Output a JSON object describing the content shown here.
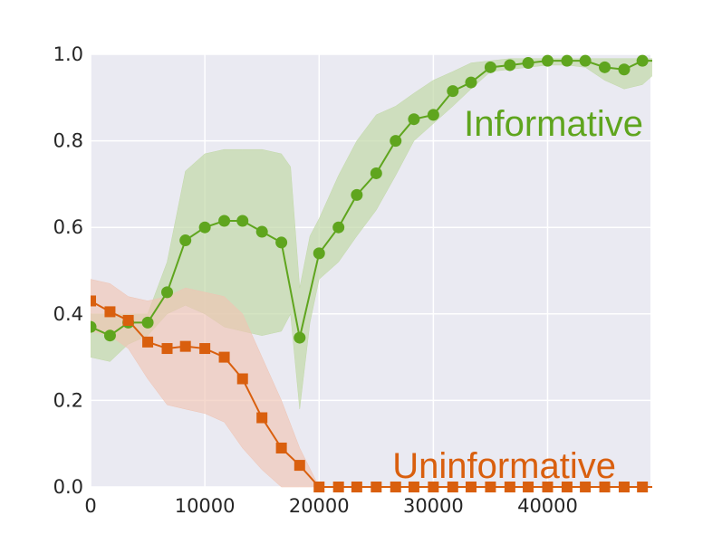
{
  "chart_data": {
    "type": "line",
    "title": "",
    "xlabel": "",
    "ylabel": "",
    "xlim": [
      0,
      49000
    ],
    "ylim": [
      0,
      1.0
    ],
    "grid": true,
    "legend": "inline labels",
    "xticks": [
      {
        "value": 0,
        "label": "0"
      },
      {
        "value": 10000,
        "label": "10000"
      },
      {
        "value": 20000,
        "label": "20000"
      },
      {
        "value": 30000,
        "label": "30000"
      },
      {
        "value": 40000,
        "label": "40000"
      }
    ],
    "yticks": [
      {
        "value": 0.0,
        "label": "0.0"
      },
      {
        "value": 0.2,
        "label": "0.2"
      },
      {
        "value": 0.4,
        "label": "0.4"
      },
      {
        "value": 0.6,
        "label": "0.6"
      },
      {
        "value": 0.8,
        "label": "0.8"
      },
      {
        "value": 1.0,
        "label": "1.0"
      }
    ],
    "colors": {
      "background": "#EAEAF2",
      "grid": "#FFFFFF",
      "informative": "#5FA51E",
      "informative_band": "#C2D9A8",
      "uninformative": "#D95F0E",
      "uninformative_band": "#EFC4B4"
    },
    "series": [
      {
        "name": "Informative",
        "color": "#5FA51E",
        "marker": "circle",
        "label_position": "upper-right",
        "points": [
          [
            0,
            0.37
          ],
          [
            1700,
            0.35
          ],
          [
            3300,
            0.38
          ],
          [
            5000,
            0.38
          ],
          [
            6700,
            0.45
          ],
          [
            8300,
            0.57
          ],
          [
            10000,
            0.6
          ],
          [
            11700,
            0.615
          ],
          [
            13300,
            0.615
          ],
          [
            15000,
            0.59
          ],
          [
            16700,
            0.565
          ],
          [
            18300,
            0.345
          ],
          [
            20000,
            0.54
          ],
          [
            21700,
            0.6
          ],
          [
            23300,
            0.675
          ],
          [
            25000,
            0.725
          ],
          [
            26700,
            0.8
          ],
          [
            28300,
            0.85
          ],
          [
            30000,
            0.86
          ],
          [
            31700,
            0.915
          ],
          [
            33300,
            0.935
          ],
          [
            35000,
            0.97
          ],
          [
            36700,
            0.975
          ],
          [
            38300,
            0.98
          ],
          [
            40000,
            0.985
          ],
          [
            41700,
            0.985
          ],
          [
            43300,
            0.985
          ],
          [
            45000,
            0.97
          ],
          [
            46700,
            0.965
          ],
          [
            48300,
            0.985
          ],
          [
            50000,
            0.985
          ]
        ],
        "band": [
          [
            0,
            0.3,
            0.4
          ],
          [
            1700,
            0.29,
            0.4
          ],
          [
            3300,
            0.33,
            0.4
          ],
          [
            5000,
            0.35,
            0.4
          ],
          [
            6700,
            0.4,
            0.52
          ],
          [
            8300,
            0.42,
            0.73
          ],
          [
            10000,
            0.4,
            0.77
          ],
          [
            11700,
            0.37,
            0.78
          ],
          [
            13300,
            0.36,
            0.78
          ],
          [
            15000,
            0.35,
            0.78
          ],
          [
            16700,
            0.36,
            0.77
          ],
          [
            17500,
            0.4,
            0.74
          ],
          [
            18300,
            0.18,
            0.46
          ],
          [
            19200,
            0.38,
            0.58
          ],
          [
            20000,
            0.48,
            0.62
          ],
          [
            21700,
            0.52,
            0.72
          ],
          [
            23300,
            0.58,
            0.8
          ],
          [
            25000,
            0.64,
            0.86
          ],
          [
            26700,
            0.72,
            0.88
          ],
          [
            28300,
            0.8,
            0.91
          ],
          [
            30000,
            0.84,
            0.94
          ],
          [
            31700,
            0.88,
            0.96
          ],
          [
            33300,
            0.92,
            0.98
          ],
          [
            35000,
            0.96,
            0.985
          ],
          [
            36700,
            0.965,
            0.99
          ],
          [
            38300,
            0.97,
            0.99
          ],
          [
            40000,
            0.975,
            0.99
          ],
          [
            41700,
            0.975,
            0.99
          ],
          [
            43300,
            0.97,
            0.99
          ],
          [
            45000,
            0.94,
            0.99
          ],
          [
            46700,
            0.92,
            0.99
          ],
          [
            48300,
            0.93,
            0.99
          ],
          [
            50000,
            0.97,
            0.99
          ]
        ]
      },
      {
        "name": "Uninformative",
        "color": "#D95F0E",
        "marker": "square",
        "label_position": "lower-right",
        "points": [
          [
            0,
            0.43
          ],
          [
            1700,
            0.405
          ],
          [
            3300,
            0.385
          ],
          [
            5000,
            0.335
          ],
          [
            6700,
            0.32
          ],
          [
            8300,
            0.325
          ],
          [
            10000,
            0.32
          ],
          [
            11700,
            0.3
          ],
          [
            13300,
            0.25
          ],
          [
            15000,
            0.16
          ],
          [
            16700,
            0.09
          ],
          [
            18300,
            0.05
          ],
          [
            20000,
            0.0
          ],
          [
            21700,
            0.0
          ],
          [
            23300,
            0.0
          ],
          [
            25000,
            0.0
          ],
          [
            26700,
            0.0
          ],
          [
            28300,
            0.0
          ],
          [
            30000,
            0.0
          ],
          [
            31700,
            0.0
          ],
          [
            33300,
            0.0
          ],
          [
            35000,
            0.0
          ],
          [
            36700,
            0.0
          ],
          [
            38300,
            0.0
          ],
          [
            40000,
            0.0
          ],
          [
            41700,
            0.0
          ],
          [
            43300,
            0.0
          ],
          [
            45000,
            0.0
          ],
          [
            46700,
            0.0
          ],
          [
            48300,
            0.0
          ],
          [
            50000,
            0.0
          ]
        ],
        "band": [
          [
            0,
            0.36,
            0.48
          ],
          [
            1700,
            0.35,
            0.47
          ],
          [
            3300,
            0.32,
            0.44
          ],
          [
            5000,
            0.25,
            0.43
          ],
          [
            6700,
            0.19,
            0.44
          ],
          [
            8300,
            0.18,
            0.46
          ],
          [
            10000,
            0.17,
            0.45
          ],
          [
            11700,
            0.15,
            0.44
          ],
          [
            13300,
            0.09,
            0.4
          ],
          [
            15000,
            0.04,
            0.3
          ],
          [
            16700,
            0.0,
            0.2
          ],
          [
            18300,
            0.0,
            0.09
          ],
          [
            20000,
            0.0,
            0.0
          ],
          [
            50000,
            0.0,
            0.0
          ]
        ]
      }
    ]
  }
}
